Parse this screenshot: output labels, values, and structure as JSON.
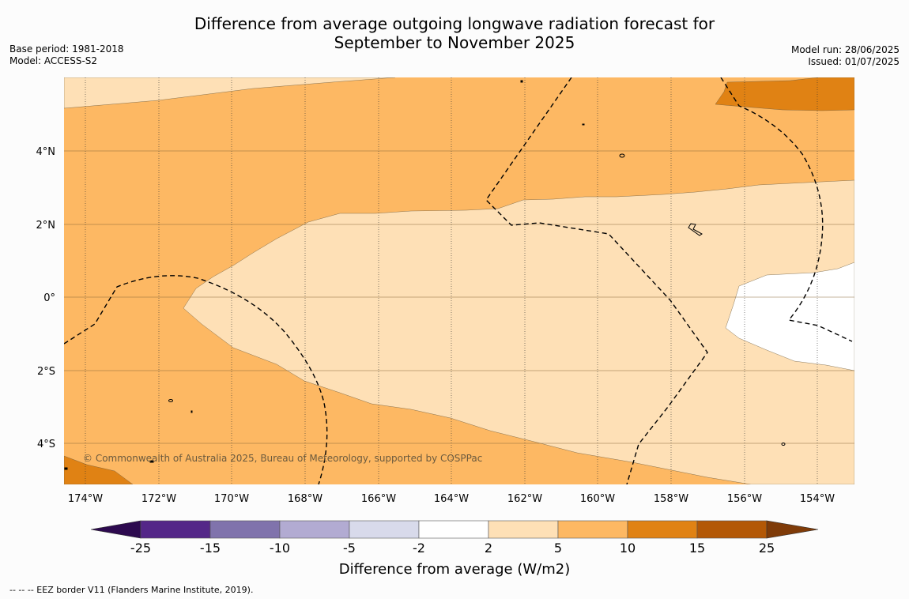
{
  "title": {
    "line1": "Difference from average outgoing longwave radiation forecast for",
    "line2": "September to November 2025"
  },
  "meta": {
    "base_period": "Base period: 1981-2018",
    "model": "Model: ACCESS-S2",
    "model_run": "Model run: 28/06/2025",
    "issued": "Issued: 01/07/2025"
  },
  "map": {
    "lon_ticks": [
      "174°W",
      "172°W",
      "170°W",
      "168°W",
      "166°W",
      "164°W",
      "162°W",
      "160°W",
      "158°W",
      "156°W",
      "154°W"
    ],
    "lat_ticks": [
      "4°N",
      "2°N",
      "0°",
      "2°S",
      "4°S"
    ],
    "copyright": "© Commonwealth of Australia 2025, Bureau of Meteorology, supported by COSPPac"
  },
  "colorbar": {
    "title": "Difference from average (W/m2)",
    "labels": [
      "-25",
      "-15",
      "-10",
      "-5",
      "-2",
      "2",
      "5",
      "10",
      "15",
      "25"
    ],
    "colors": [
      "#2d0a4f",
      "#542788",
      "#8073ac",
      "#b2abd2",
      "#d8daeb",
      "#ffffff",
      "#fee0b6",
      "#fdb863",
      "#e08214",
      "#b35806",
      "#7f3b08"
    ]
  },
  "footnote": "--  --  -- EEZ border V11 (Flanders Marine Institute, 2019)."
}
